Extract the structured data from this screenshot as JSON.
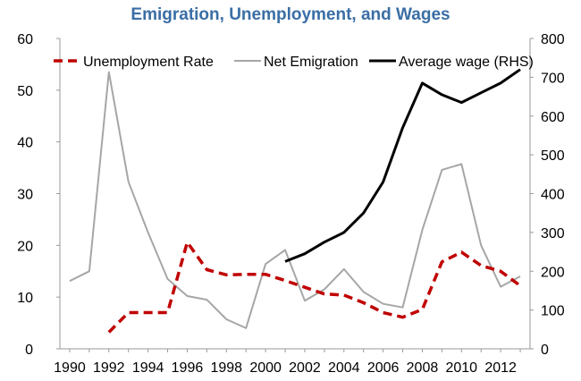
{
  "chart_data": {
    "type": "line",
    "title": "Emigration, Unemployment, and Wages",
    "title_color": "#3a6ea5",
    "xlabel": "",
    "ylabel_left": "",
    "ylabel_right": "",
    "x": [
      1990,
      1991,
      1992,
      1993,
      1994,
      1995,
      1996,
      1997,
      1998,
      1999,
      2000,
      2001,
      2002,
      2003,
      2004,
      2005,
      2006,
      2007,
      2008,
      2009,
      2010,
      2011,
      2012,
      2013
    ],
    "x_tick_labels": [
      "1990",
      "1992",
      "1994",
      "1996",
      "1998",
      "2000",
      "2002",
      "2004",
      "2006",
      "2008",
      "2010",
      "2012"
    ],
    "xlim": [
      1989.5,
      2013.5
    ],
    "ylim_left": [
      0,
      60
    ],
    "y_left_ticks": [
      "0",
      "10",
      "20",
      "30",
      "40",
      "50",
      "60"
    ],
    "ylim_right": [
      0,
      800
    ],
    "y_right_ticks": [
      "0",
      "100",
      "200",
      "300",
      "400",
      "500",
      "600",
      "700",
      "800"
    ],
    "grid": false,
    "legend_position": "top",
    "series": [
      {
        "name": "Unemployment Rate",
        "axis": "left",
        "color": "#c00000",
        "style": "dashed",
        "values": [
          null,
          null,
          3.2,
          7.0,
          7.0,
          7.0,
          20.6,
          15.3,
          14.3,
          14.4,
          14.4,
          13.2,
          11.9,
          10.6,
          10.4,
          8.9,
          7.0,
          6.1,
          7.6,
          16.8,
          18.7,
          16.1,
          15.0,
          12.2
        ]
      },
      {
        "name": "Net Emigration",
        "axis": "left",
        "color": "#a6a6a6",
        "style": "solid",
        "values": [
          13.1,
          15.0,
          53.5,
          32.3,
          22.5,
          13.5,
          10.2,
          9.5,
          5.7,
          4.0,
          16.4,
          19.1,
          9.3,
          11.5,
          15.4,
          11.0,
          8.7,
          8.0,
          23.0,
          34.6,
          35.7,
          20.0,
          12.0,
          14.0
        ]
      },
      {
        "name": "Average wage (RHS)",
        "axis": "right",
        "color": "#000000",
        "style": "solid",
        "values": [
          null,
          null,
          null,
          null,
          null,
          null,
          null,
          null,
          null,
          null,
          null,
          225,
          245,
          275,
          300,
          350,
          430,
          570,
          685,
          655,
          635,
          660,
          685,
          720
        ]
      }
    ]
  }
}
